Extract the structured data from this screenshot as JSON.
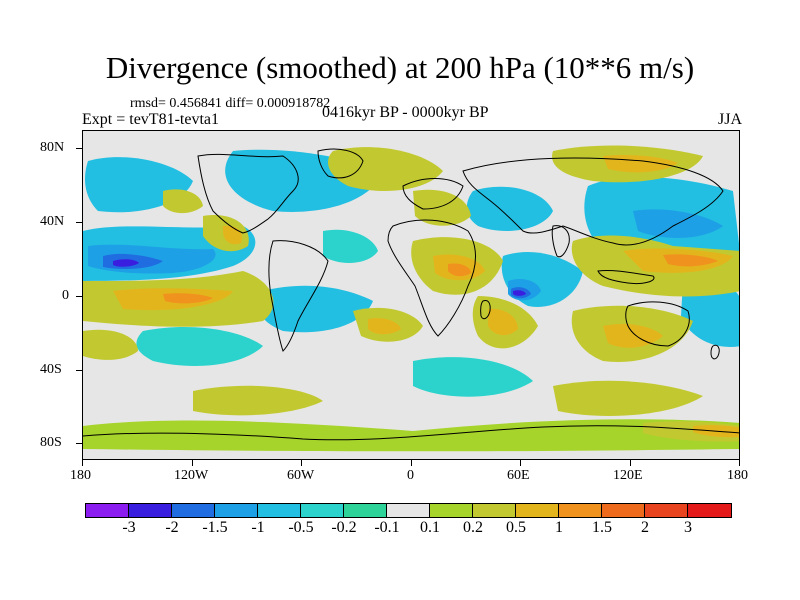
{
  "title": "Divergence (smoothed) at 200 hPa (10**6 m/s)",
  "stats": "rmsd= 0.456841 diff= 0.000918782",
  "expt": "Expt = tevT81-tevta1",
  "period": "0416kyr BP - 0000kyr BP",
  "season": "JJA",
  "colors": {
    "v_lt_m3": "#8c1df0",
    "v_m3_m2": "#3a1ee0",
    "v_m2_m15": "#1f6de0",
    "v_m15_m1": "#1ea0e6",
    "v_m1_m05": "#22bfe2",
    "v_m05_m02": "#2bd3cc",
    "v_m02_m01": "#2ed39a",
    "v_neutral": "#e6e6e6",
    "v_01_02": "#a6d42a",
    "v_02_05": "#c2c930",
    "v_05_1": "#e3b51c",
    "v_1_15": "#f0921e",
    "v_15_2": "#ee6a1c",
    "v_2_3": "#e94420",
    "v_gt_3": "#e41a1a",
    "land": "#000000"
  },
  "colorbar": {
    "colors": [
      "#8c1df0",
      "#3a1ee0",
      "#1f6de0",
      "#1ea0e6",
      "#22bfe2",
      "#2bd3cc",
      "#2ed39a",
      "#e6e6e6",
      "#a6d42a",
      "#c2c930",
      "#e3b51c",
      "#f0921e",
      "#ee6a1c",
      "#e94420",
      "#e41a1a"
    ],
    "labels": [
      "-3",
      "-2",
      "-1.5",
      "-1",
      "-0.5",
      "-0.2",
      "-0.1",
      "0.1",
      "0.2",
      "0.5",
      "1",
      "1.5",
      "2",
      "3"
    ]
  },
  "axes": {
    "lat_labels": [
      "80N",
      "40N",
      "0",
      "40S",
      "80S"
    ],
    "lon_labels": [
      "180",
      "120W",
      "60W",
      "0",
      "60E",
      "120E",
      "180"
    ]
  }
}
